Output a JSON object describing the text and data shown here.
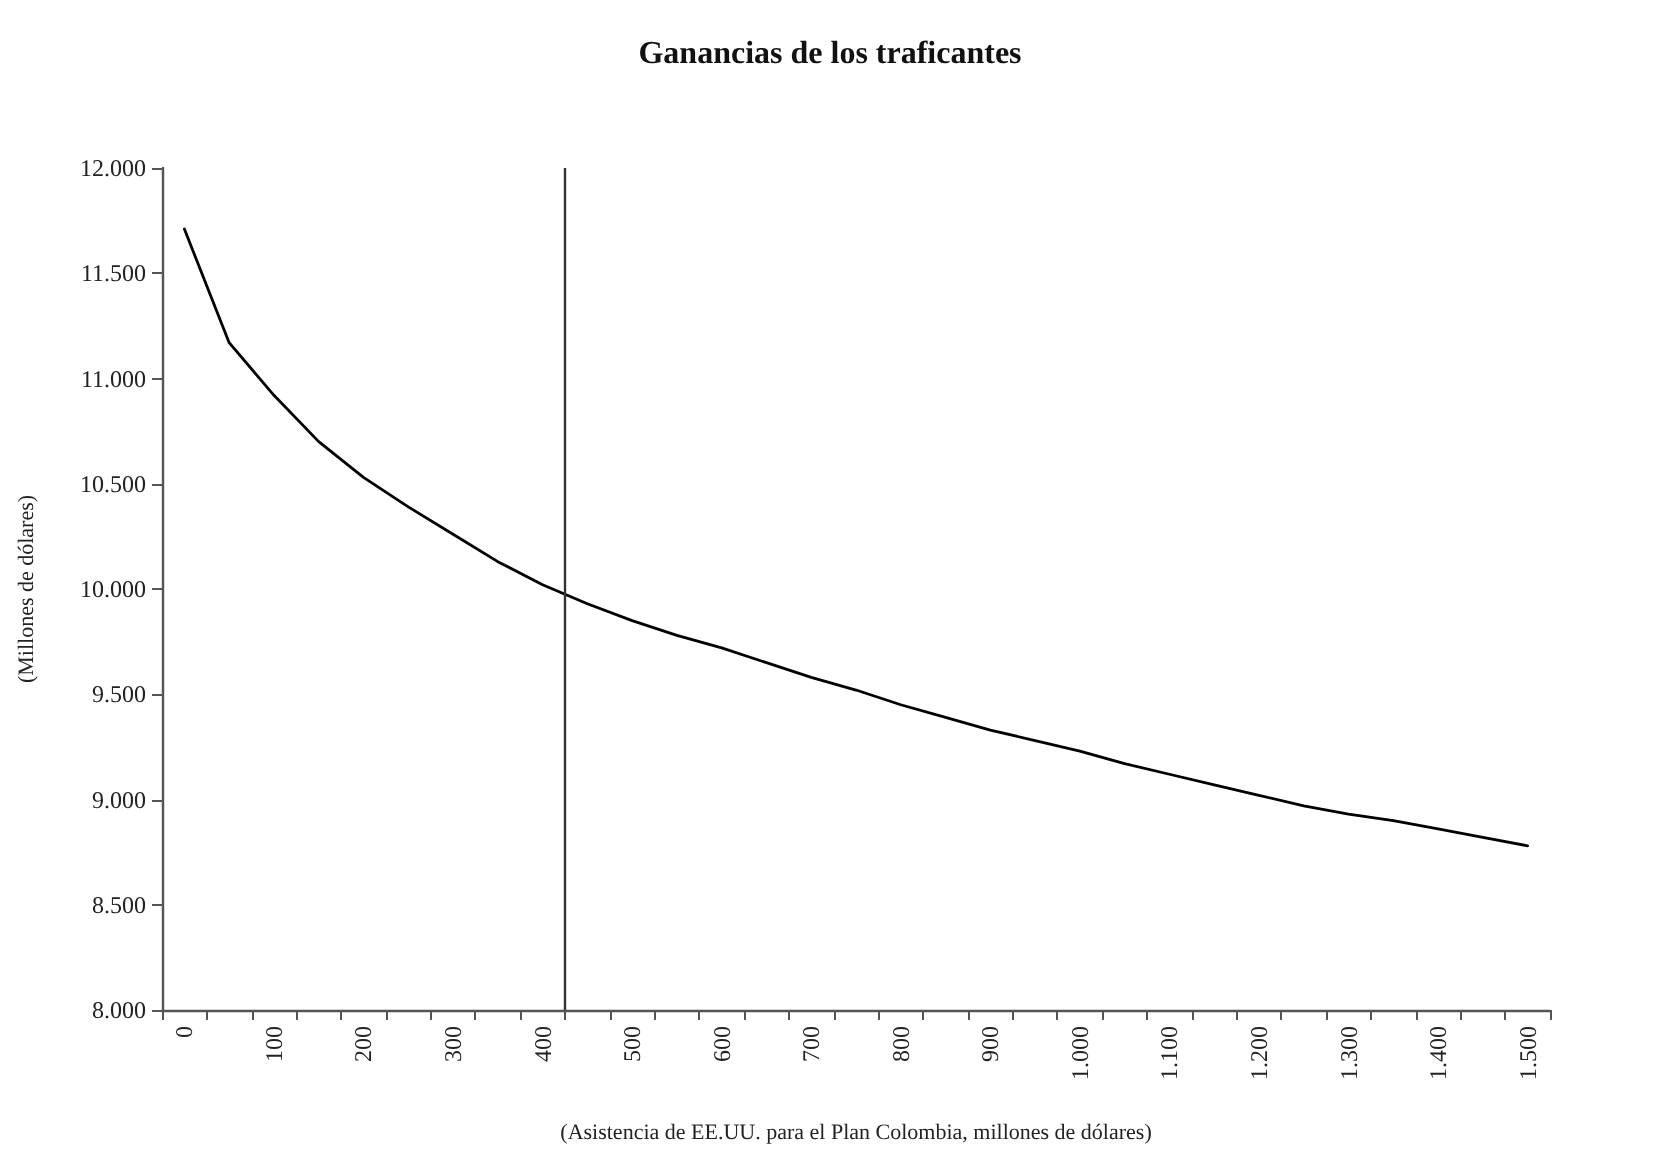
{
  "chart_data": {
    "type": "line",
    "title": "Ganancias de los traficantes",
    "xlabel": "(Asistencia de EE.UU. para el Plan Colombia, millones de dólares)",
    "ylabel": "(Millones de dólares)",
    "x": [
      0,
      50,
      100,
      150,
      200,
      250,
      300,
      350,
      400,
      450,
      500,
      550,
      600,
      650,
      700,
      750,
      800,
      850,
      900,
      950,
      1000,
      1050,
      1100,
      1150,
      1200,
      1250,
      1300,
      1350,
      1400,
      1450,
      1500
    ],
    "series": [
      {
        "color": "#000000",
        "values": [
          11710,
          11170,
          10920,
          10700,
          10530,
          10390,
          10260,
          10130,
          10020,
          9930,
          9850,
          9780,
          9720,
          9650,
          9580,
          9520,
          9450,
          9390,
          9330,
          9280,
          9230,
          9170,
          9120,
          9070,
          9020,
          8970,
          8930,
          8900,
          8860,
          8820,
          8780
        ]
      }
    ],
    "xlim": [
      -25,
      1525
    ],
    "xticks": [
      {
        "value": -25,
        "label": null
      },
      {
        "value": 0,
        "label": "0"
      },
      {
        "value": 25,
        "label": null
      },
      {
        "value": 75,
        "label": null
      },
      {
        "value": 100,
        "label": "100"
      },
      {
        "value": 125,
        "label": null
      },
      {
        "value": 175,
        "label": null
      },
      {
        "value": 200,
        "label": "200"
      },
      {
        "value": 225,
        "label": null
      },
      {
        "value": 275,
        "label": null
      },
      {
        "value": 300,
        "label": "300"
      },
      {
        "value": 325,
        "label": null
      },
      {
        "value": 375,
        "label": null
      },
      {
        "value": 400,
        "label": "400"
      },
      {
        "value": 425,
        "label": null
      },
      {
        "value": 475,
        "label": null
      },
      {
        "value": 500,
        "label": "500"
      },
      {
        "value": 525,
        "label": null
      },
      {
        "value": 575,
        "label": null
      },
      {
        "value": 600,
        "label": "600"
      },
      {
        "value": 625,
        "label": null
      },
      {
        "value": 675,
        "label": null
      },
      {
        "value": 700,
        "label": "700"
      },
      {
        "value": 725,
        "label": null
      },
      {
        "value": 775,
        "label": null
      },
      {
        "value": 800,
        "label": "800"
      },
      {
        "value": 825,
        "label": null
      },
      {
        "value": 875,
        "label": null
      },
      {
        "value": 900,
        "label": "900"
      },
      {
        "value": 925,
        "label": null
      },
      {
        "value": 975,
        "label": null
      },
      {
        "value": 1000,
        "label": "1.000"
      },
      {
        "value": 1025,
        "label": null
      },
      {
        "value": 1075,
        "label": null
      },
      {
        "value": 1100,
        "label": "1.100"
      },
      {
        "value": 1125,
        "label": null
      },
      {
        "value": 1175,
        "label": null
      },
      {
        "value": 1200,
        "label": "1.200"
      },
      {
        "value": 1225,
        "label": null
      },
      {
        "value": 1275,
        "label": null
      },
      {
        "value": 1300,
        "label": "1.300"
      },
      {
        "value": 1325,
        "label": null
      },
      {
        "value": 1375,
        "label": null
      },
      {
        "value": 1400,
        "label": "1.400"
      },
      {
        "value": 1425,
        "label": null
      },
      {
        "value": 1475,
        "label": null
      },
      {
        "value": 1500,
        "label": "1.500"
      },
      {
        "value": 1525,
        "label": null
      }
    ],
    "ylim": [
      8000,
      12000
    ],
    "yticks": [
      {
        "value": 8000,
        "label": "8.000"
      },
      {
        "value": 8500,
        "label": "8.500"
      },
      {
        "value": 9000,
        "label": "9.000"
      },
      {
        "value": 9500,
        "label": "9.500"
      },
      {
        "value": 10000,
        "label": "10.000"
      },
      {
        "value": 10500,
        "label": "10.500"
      },
      {
        "value": 11000,
        "label": "11.000"
      },
      {
        "value": 11500,
        "label": "11.500"
      },
      {
        "value": 12000,
        "label": "12.000"
      }
    ],
    "ref_lines": [
      {
        "axis": "x",
        "value": 425,
        "color": "#333333"
      }
    ],
    "grid": false,
    "marker": "none",
    "line_style": "solid"
  }
}
